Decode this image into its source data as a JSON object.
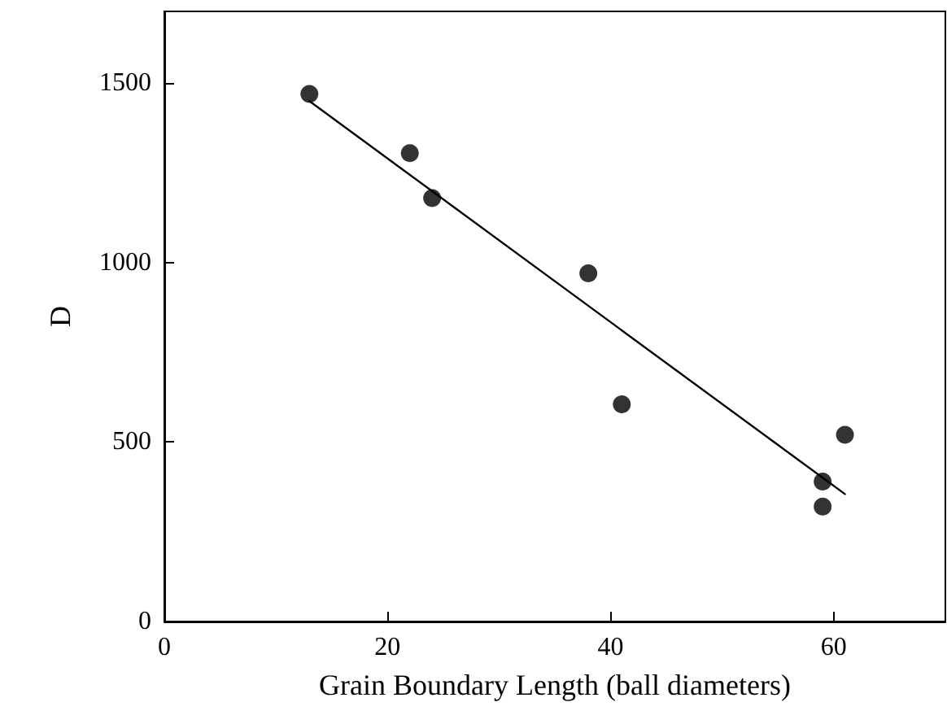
{
  "chart_data": {
    "type": "scatter",
    "xlabel": "Grain Boundary Length (ball diameters)",
    "ylabel": "D",
    "xlim": [
      0,
      70
    ],
    "xticks": [
      0,
      20,
      40,
      60
    ],
    "ylim": [
      0,
      1700
    ],
    "yticks": [
      0,
      500,
      1000,
      1500
    ],
    "grid": false,
    "marker": "circle",
    "series": [
      {
        "color": "#000000",
        "x": [
          13,
          22,
          24,
          38,
          41,
          59,
          59,
          61
        ],
        "values": [
          1470,
          1305,
          1180,
          970,
          605,
          390,
          320,
          520
        ]
      },
      {
        "type": "line",
        "color": "#000000",
        "marker": "none",
        "line_style": "solid",
        "x": [
          13,
          61
        ],
        "values": [
          1450,
          355
        ]
      }
    ]
  }
}
